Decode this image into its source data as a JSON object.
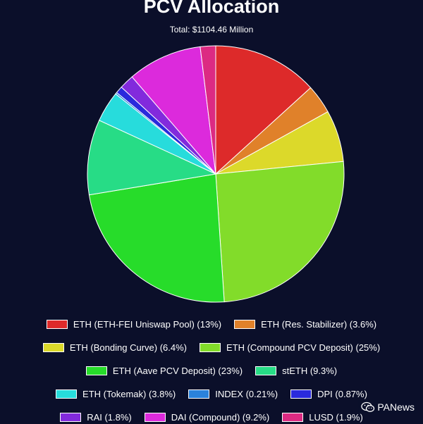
{
  "chart_data": {
    "type": "pie",
    "title": "PCV Allocation",
    "subtitle": "Total: $1104.46 Million",
    "legend_position": "bottom",
    "slices": [
      {
        "label": "ETH (ETH-FEI Uniswap Pool) (13%)",
        "value": 13,
        "color": "#dd2a2a"
      },
      {
        "label": "ETH (Res. Stabilizer) (3.6%)",
        "value": 3.6,
        "color": "#e0812a"
      },
      {
        "label": "ETH (Bonding Curve) (6.4%)",
        "value": 6.4,
        "color": "#dcd92a"
      },
      {
        "label": "ETH (Compound PCV Deposit) (25%)",
        "value": 25,
        "color": "#82dc2a"
      },
      {
        "label": "ETH (Aave PCV Deposit) (23%)",
        "value": 23,
        "color": "#27dc2a"
      },
      {
        "label": "stETH (9.3%)",
        "value": 9.3,
        "color": "#27dc86"
      },
      {
        "label": "ETH (Tokemak) (3.8%)",
        "value": 3.8,
        "color": "#27dcdc"
      },
      {
        "label": "INDEX (0.21%)",
        "value": 0.21,
        "color": "#2a82dc"
      },
      {
        "label": "DPI (0.87%)",
        "value": 0.87,
        "color": "#2a2adc"
      },
      {
        "label": "RAI (1.8%)",
        "value": 1.8,
        "color": "#822adc"
      },
      {
        "label": "DAI (Compound) (9.2%)",
        "value": 9.2,
        "color": "#dc2adc"
      },
      {
        "label": "LUSD (1.9%)",
        "value": 1.9,
        "color": "#dc2a82"
      }
    ]
  },
  "watermark": {
    "text": "PANews",
    "icon": "wechat-icon"
  }
}
